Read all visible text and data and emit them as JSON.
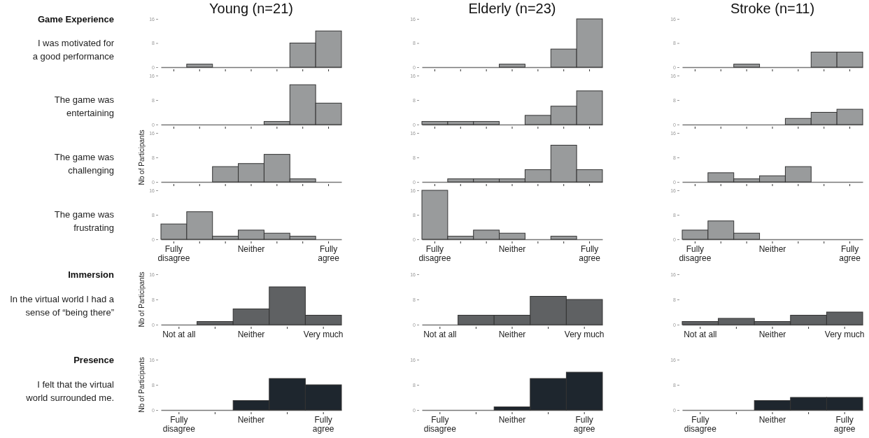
{
  "chart_data": [
    {
      "type": "bar",
      "title": "Young (n=21)",
      "subtitle": "Game Experience",
      "annotations": [
        "I was motivated for",
        "a good performance"
      ],
      "categories": [
        null,
        null,
        null,
        null,
        null,
        null,
        null
      ],
      "values": [
        0,
        1,
        0,
        0,
        0,
        8,
        12
      ],
      "color": "#999b9c",
      "ylim": [
        0,
        16
      ],
      "yticks": [
        0,
        8,
        16
      ]
    },
    {
      "type": "bar",
      "title": "Elderly (n=23)",
      "categories": [
        null,
        null,
        null,
        null,
        null,
        null,
        null
      ],
      "values": [
        0,
        0,
        0,
        1,
        0,
        6,
        16
      ],
      "color": "#999b9c",
      "ylim": [
        0,
        16
      ],
      "yticks": [
        0,
        8,
        16
      ]
    },
    {
      "type": "bar",
      "title": "Stroke (n=11)",
      "categories": [
        null,
        null,
        null,
        null,
        null,
        null,
        null
      ],
      "values": [
        0,
        0,
        1,
        0,
        0,
        5,
        5
      ],
      "color": "#999b9c",
      "ylim": [
        0,
        16
      ],
      "yticks": [
        0,
        8,
        16
      ]
    },
    {
      "type": "bar",
      "annotations": [
        "The game was",
        "entertaining"
      ],
      "categories": [
        null,
        null,
        null,
        null,
        null,
        null,
        null
      ],
      "values": [
        0,
        0,
        0,
        0,
        1,
        13,
        7
      ],
      "color": "#999b9c",
      "ylim": [
        0,
        16
      ],
      "yticks": [
        0,
        8,
        16
      ]
    },
    {
      "type": "bar",
      "categories": [
        null,
        null,
        null,
        null,
        null,
        null,
        null
      ],
      "values": [
        1,
        1,
        1,
        0,
        3,
        6,
        11
      ],
      "color": "#999b9c",
      "ylim": [
        0,
        16
      ],
      "yticks": [
        0,
        8,
        16
      ]
    },
    {
      "type": "bar",
      "categories": [
        null,
        null,
        null,
        null,
        null,
        null,
        null
      ],
      "values": [
        0,
        0,
        0,
        0,
        2,
        4,
        5
      ],
      "color": "#999b9c",
      "ylim": [
        0,
        16
      ],
      "yticks": [
        0,
        8,
        16
      ]
    },
    {
      "type": "bar",
      "ylabel": "Nb of Participants",
      "annotations": [
        "The game was",
        "challenging"
      ],
      "categories": [
        null,
        null,
        null,
        null,
        null,
        null,
        null
      ],
      "values": [
        0,
        0,
        5,
        6,
        9,
        1,
        0
      ],
      "color": "#999b9c",
      "ylim": [
        0,
        16
      ],
      "yticks": [
        0,
        8,
        16
      ]
    },
    {
      "type": "bar",
      "categories": [
        null,
        null,
        null,
        null,
        null,
        null,
        null
      ],
      "values": [
        0,
        1,
        1,
        1,
        4,
        12,
        4
      ],
      "color": "#999b9c",
      "ylim": [
        0,
        16
      ],
      "yticks": [
        0,
        8,
        16
      ]
    },
    {
      "type": "bar",
      "categories": [
        null,
        null,
        null,
        null,
        null,
        null,
        null
      ],
      "values": [
        0,
        3,
        1,
        2,
        5,
        0,
        0
      ],
      "color": "#999b9c",
      "ylim": [
        0,
        16
      ],
      "yticks": [
        0,
        8,
        16
      ]
    },
    {
      "type": "bar",
      "annotations": [
        "The game was",
        "frustrating"
      ],
      "categories": [
        "Fully disagree",
        null,
        null,
        "Neither",
        null,
        null,
        "Fully agree"
      ],
      "values": [
        5,
        9,
        1,
        3,
        2,
        1,
        0
      ],
      "color": "#999b9c",
      "ylim": [
        0,
        16
      ],
      "yticks": [
        0,
        8,
        16
      ]
    },
    {
      "type": "bar",
      "categories": [
        "Fully disagree",
        null,
        null,
        "Neither",
        null,
        null,
        "Fully agree"
      ],
      "values": [
        16,
        1,
        3,
        2,
        0,
        1,
        0
      ],
      "color": "#999b9c",
      "ylim": [
        0,
        16
      ],
      "yticks": [
        0,
        8,
        16
      ]
    },
    {
      "type": "bar",
      "categories": [
        "Fully disagree",
        null,
        null,
        "Neither",
        null,
        null,
        "Fully agree"
      ],
      "values": [
        3,
        6,
        2,
        0,
        0,
        0,
        0
      ],
      "color": "#999b9c",
      "ylim": [
        0,
        16
      ],
      "yticks": [
        0,
        8,
        16
      ]
    },
    {
      "type": "bar",
      "subtitle": "Immersion",
      "ylabel": "Nb of Participants",
      "annotations": [
        "In the virtual world I had a",
        "sense of “being there”"
      ],
      "categories": [
        "Not at all",
        null,
        "Neither",
        null,
        "Very much"
      ],
      "values": [
        0,
        1,
        5,
        12,
        3
      ],
      "color": "#5f6163",
      "ylim": [
        0,
        16
      ],
      "yticks": [
        0,
        8,
        16
      ]
    },
    {
      "type": "bar",
      "categories": [
        "Not at all",
        null,
        "Neither",
        null,
        "Very much"
      ],
      "values": [
        0,
        3,
        3,
        9,
        8
      ],
      "color": "#5f6163",
      "ylim": [
        0,
        16
      ],
      "yticks": [
        0,
        8,
        16
      ]
    },
    {
      "type": "bar",
      "categories": [
        "Not at all",
        null,
        "Neither",
        null,
        "Very much"
      ],
      "values": [
        1,
        2,
        1,
        3,
        4
      ],
      "color": "#5f6163",
      "ylim": [
        0,
        16
      ],
      "yticks": [
        0,
        8,
        16
      ]
    },
    {
      "type": "bar",
      "subtitle": "Presence",
      "ylabel": "Nb of Participants",
      "annotations": [
        "I felt that the virtual",
        "world surrounded me."
      ],
      "categories": [
        "Fully disagree",
        null,
        "Neither",
        null,
        "Fully agree"
      ],
      "values": [
        0,
        0,
        3,
        10,
        8
      ],
      "color": "#1e262e",
      "ylim": [
        0,
        16
      ],
      "yticks": [
        0,
        8,
        16
      ]
    },
    {
      "type": "bar",
      "categories": [
        "Fully disagree",
        null,
        "Neither",
        null,
        "Fully agree"
      ],
      "values": [
        0,
        0,
        1,
        10,
        12
      ],
      "color": "#1e262e",
      "ylim": [
        0,
        16
      ],
      "yticks": [
        0,
        8,
        16
      ]
    },
    {
      "type": "bar",
      "categories": [
        "Fully disagree",
        null,
        "Neither",
        null,
        "Fully agree"
      ],
      "values": [
        0,
        0,
        3,
        4,
        4
      ],
      "color": "#1e262e",
      "ylim": [
        0,
        16
      ],
      "yticks": [
        0,
        8,
        16
      ]
    }
  ]
}
